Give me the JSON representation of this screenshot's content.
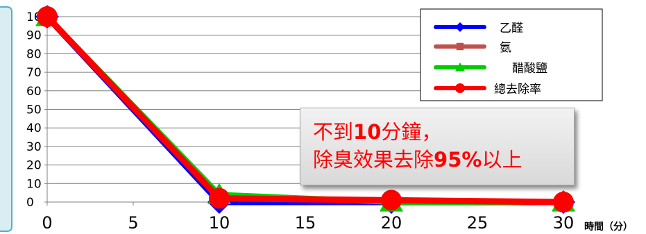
{
  "chart_data": {
    "type": "line",
    "title": "",
    "xlabel": "時間（分）",
    "ylabel": "",
    "x": [
      0,
      10,
      20,
      30
    ],
    "xlim": [
      0,
      30
    ],
    "ylim": [
      0,
      100
    ],
    "xticks": [
      "0",
      "5",
      "10",
      "15",
      "20",
      "25",
      "30"
    ],
    "yticks": [
      "0",
      "10",
      "20",
      "30",
      "40",
      "50",
      "60",
      "70",
      "80",
      "90",
      "100"
    ],
    "grid": true,
    "legend_position": "top-right",
    "series": [
      {
        "name": "乙醛",
        "values": [
          100,
          0,
          0,
          0
        ],
        "color": "#0000ff",
        "marker": "diamond"
      },
      {
        "name": "氨",
        "values": [
          100,
          2,
          1,
          0
        ],
        "color": "#c0504d",
        "marker": "square"
      },
      {
        "name": "醋酸鹽",
        "values": [
          100,
          4,
          0,
          0
        ],
        "color": "#00cc00",
        "marker": "triangle"
      },
      {
        "name": "總去除率",
        "values": [
          100,
          2,
          1,
          0
        ],
        "color": "#ff0000",
        "marker": "circle"
      }
    ],
    "annotation": {
      "line1_pre": "不到",
      "line1_bold": "10",
      "line1_post": "分鐘，",
      "line2_pre": "除臭效果去除",
      "line2_bold": "95%",
      "line2_post": "以上"
    }
  }
}
